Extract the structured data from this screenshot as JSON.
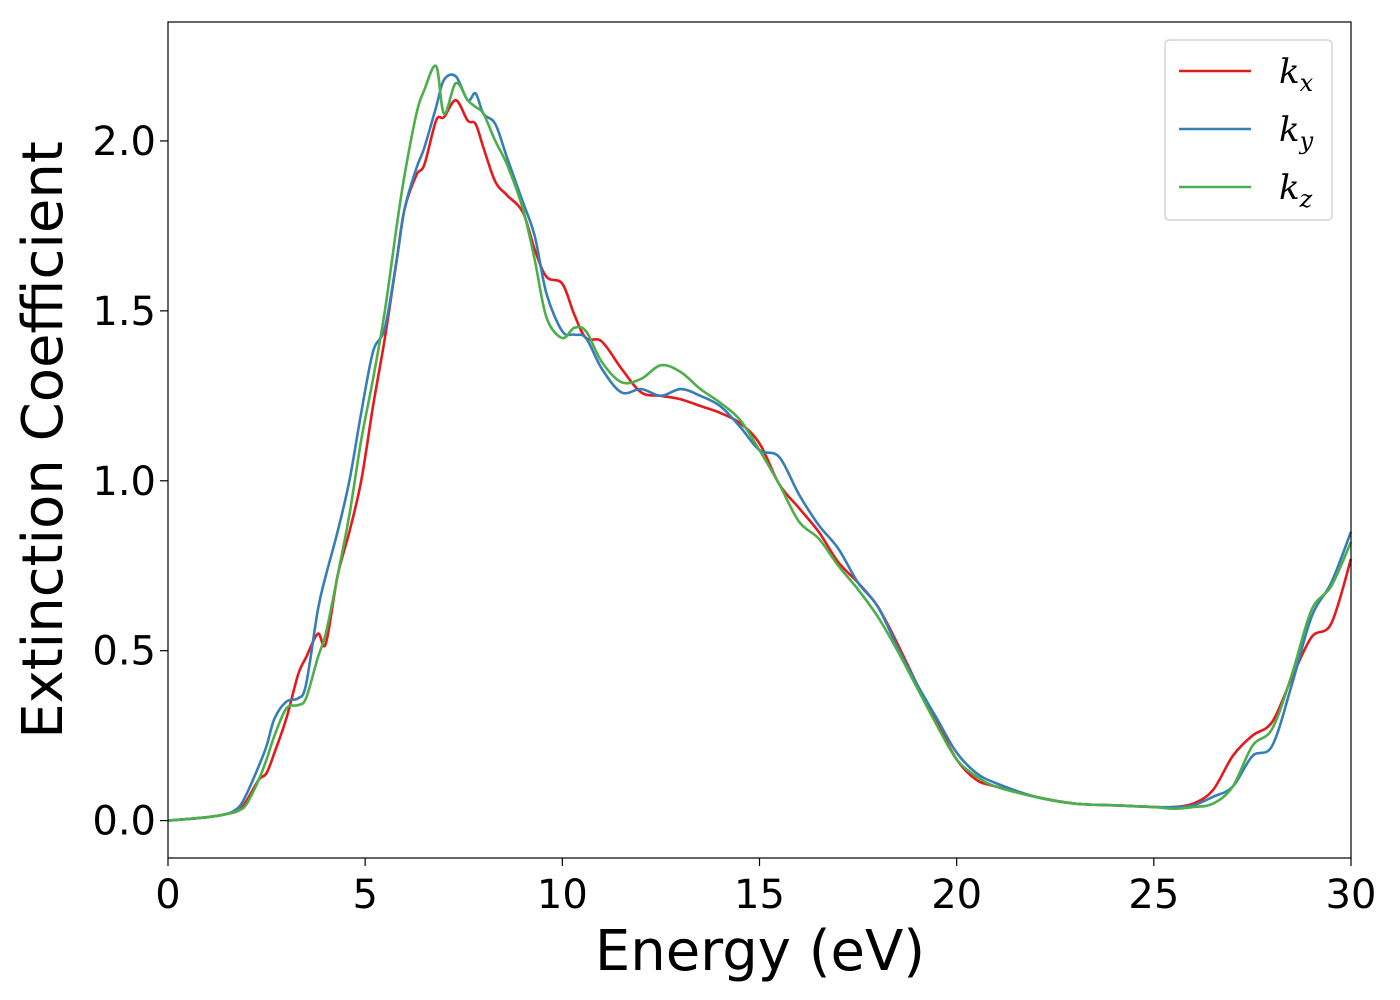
{
  "chart_data": {
    "type": "line",
    "title": "",
    "xlabel": "Energy (eV)",
    "ylabel": "Extinction Coefficient",
    "xlim": [
      0,
      30
    ],
    "ylim": [
      -0.11,
      2.35
    ],
    "xticks": [
      0,
      5,
      10,
      15,
      20,
      25,
      30
    ],
    "xtick_labels": [
      "0",
      "5",
      "10",
      "15",
      "20",
      "25",
      "30"
    ],
    "yticks": [
      0.0,
      0.5,
      1.0,
      1.5,
      2.0
    ],
    "ytick_labels": [
      "0.0",
      "0.5",
      "1.0",
      "1.5",
      "2.0"
    ],
    "grid": false,
    "legend_position": "top-right",
    "colors": {
      "kx": "#e41a1c",
      "ky": "#377eb8",
      "kz": "#4daf4a",
      "axis": "#000000",
      "legend_border": "#cccccc"
    },
    "series": [
      {
        "name": "kx",
        "legend_base": "k",
        "legend_sub": "x",
        "color": "#e41a1c",
        "x": [
          0,
          1,
          1.5,
          1.8,
          2.0,
          2.3,
          2.5,
          2.7,
          3.0,
          3.3,
          3.5,
          3.8,
          4.0,
          4.3,
          4.6,
          4.9,
          5.2,
          5.5,
          5.8,
          6.0,
          6.3,
          6.5,
          6.8,
          7.0,
          7.3,
          7.6,
          7.8,
          8.0,
          8.3,
          8.6,
          9.0,
          9.3,
          9.6,
          10.0,
          10.3,
          10.6,
          11.0,
          11.5,
          12.0,
          12.5,
          13.0,
          13.5,
          14.0,
          14.5,
          15.0,
          15.5,
          16.0,
          16.5,
          17.0,
          17.5,
          18.0,
          18.5,
          19.0,
          19.5,
          20.0,
          20.5,
          21.0,
          22.0,
          23.0,
          24.0,
          25.0,
          25.5,
          26.0,
          26.5,
          27.0,
          27.5,
          28.0,
          28.5,
          29.0,
          29.5,
          30.0
        ],
        "y": [
          0.0,
          0.01,
          0.02,
          0.03,
          0.06,
          0.12,
          0.14,
          0.2,
          0.3,
          0.43,
          0.48,
          0.55,
          0.52,
          0.72,
          0.85,
          1.0,
          1.22,
          1.42,
          1.65,
          1.8,
          1.9,
          1.93,
          2.06,
          2.07,
          2.12,
          2.06,
          2.05,
          1.98,
          1.88,
          1.84,
          1.79,
          1.68,
          1.6,
          1.58,
          1.49,
          1.42,
          1.41,
          1.33,
          1.26,
          1.25,
          1.24,
          1.22,
          1.2,
          1.17,
          1.11,
          0.99,
          0.92,
          0.85,
          0.76,
          0.7,
          0.63,
          0.52,
          0.4,
          0.29,
          0.18,
          0.12,
          0.1,
          0.07,
          0.05,
          0.045,
          0.04,
          0.04,
          0.05,
          0.09,
          0.19,
          0.25,
          0.29,
          0.42,
          0.54,
          0.58,
          0.77
        ]
      },
      {
        "name": "ky",
        "legend_base": "k",
        "legend_sub": "y",
        "color": "#377eb8",
        "x": [
          0,
          1,
          1.5,
          1.8,
          2.0,
          2.3,
          2.5,
          2.7,
          3.0,
          3.3,
          3.5,
          3.8,
          4.0,
          4.3,
          4.6,
          4.9,
          5.2,
          5.5,
          5.8,
          6.0,
          6.3,
          6.5,
          6.8,
          7.0,
          7.3,
          7.6,
          7.8,
          8.0,
          8.3,
          8.6,
          9.0,
          9.3,
          9.6,
          10.0,
          10.3,
          10.6,
          11.0,
          11.5,
          12.0,
          12.5,
          13.0,
          13.5,
          14.0,
          14.5,
          15.0,
          15.5,
          16.0,
          16.5,
          17.0,
          17.5,
          18.0,
          18.5,
          19.0,
          19.5,
          20.0,
          20.5,
          21.0,
          22.0,
          23.0,
          24.0,
          25.0,
          25.5,
          26.0,
          26.5,
          27.0,
          27.5,
          28.0,
          28.5,
          29.0,
          29.5,
          30.0
        ],
        "y": [
          0.0,
          0.01,
          0.02,
          0.04,
          0.08,
          0.16,
          0.22,
          0.3,
          0.35,
          0.36,
          0.4,
          0.62,
          0.72,
          0.85,
          1.0,
          1.2,
          1.38,
          1.45,
          1.65,
          1.8,
          1.92,
          1.98,
          2.1,
          2.18,
          2.19,
          2.12,
          2.14,
          2.08,
          2.05,
          1.95,
          1.82,
          1.72,
          1.55,
          1.44,
          1.43,
          1.42,
          1.33,
          1.26,
          1.27,
          1.25,
          1.27,
          1.25,
          1.22,
          1.16,
          1.09,
          1.07,
          0.96,
          0.87,
          0.8,
          0.7,
          0.63,
          0.51,
          0.4,
          0.3,
          0.2,
          0.14,
          0.11,
          0.07,
          0.05,
          0.045,
          0.04,
          0.04,
          0.045,
          0.07,
          0.1,
          0.19,
          0.22,
          0.4,
          0.6,
          0.7,
          0.85
        ]
      },
      {
        "name": "kz",
        "legend_base": "k",
        "legend_sub": "z",
        "color": "#4daf4a",
        "x": [
          0,
          1,
          1.5,
          1.8,
          2.0,
          2.3,
          2.5,
          2.7,
          3.0,
          3.3,
          3.5,
          3.8,
          4.0,
          4.3,
          4.6,
          4.9,
          5.2,
          5.5,
          5.8,
          6.0,
          6.3,
          6.5,
          6.8,
          7.0,
          7.3,
          7.6,
          7.8,
          8.0,
          8.3,
          8.6,
          9.0,
          9.3,
          9.6,
          10.0,
          10.3,
          10.6,
          11.0,
          11.5,
          12.0,
          12.5,
          13.0,
          13.5,
          14.0,
          14.5,
          15.0,
          15.5,
          16.0,
          16.5,
          17.0,
          17.5,
          18.0,
          18.5,
          19.0,
          19.5,
          20.0,
          20.5,
          21.0,
          22.0,
          23.0,
          24.0,
          25.0,
          25.5,
          26.0,
          26.5,
          27.0,
          27.5,
          28.0,
          28.5,
          29.0,
          29.5,
          30.0
        ],
        "y": [
          0.0,
          0.01,
          0.02,
          0.03,
          0.05,
          0.12,
          0.18,
          0.25,
          0.33,
          0.34,
          0.36,
          0.48,
          0.55,
          0.72,
          0.9,
          1.12,
          1.3,
          1.5,
          1.75,
          1.9,
          2.08,
          2.15,
          2.22,
          2.08,
          2.17,
          2.12,
          2.1,
          2.08,
          2.0,
          1.93,
          1.8,
          1.65,
          1.48,
          1.42,
          1.45,
          1.44,
          1.35,
          1.29,
          1.3,
          1.34,
          1.32,
          1.27,
          1.23,
          1.18,
          1.09,
          0.99,
          0.88,
          0.83,
          0.75,
          0.68,
          0.6,
          0.5,
          0.39,
          0.28,
          0.18,
          0.13,
          0.1,
          0.07,
          0.05,
          0.045,
          0.04,
          0.035,
          0.04,
          0.05,
          0.1,
          0.22,
          0.27,
          0.43,
          0.62,
          0.69,
          0.82
        ]
      }
    ]
  }
}
